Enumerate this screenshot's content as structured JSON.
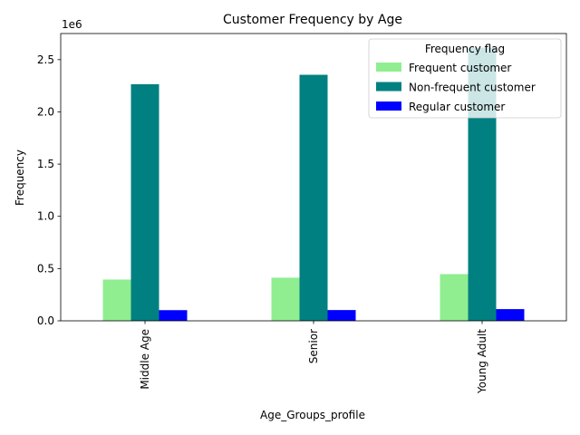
{
  "chart_data": {
    "type": "bar",
    "title": "Customer Frequency by Age",
    "xlabel": "Age_Groups_profile",
    "ylabel": "Frequency",
    "y_offset_label": "1e6",
    "categories": [
      "Middle Age",
      "Senior",
      "Young Adult"
    ],
    "series": [
      {
        "name": "Frequent customer",
        "color": "#90ee90",
        "values": [
          395000,
          413000,
          447000
        ]
      },
      {
        "name": "Non-frequent customer",
        "color": "#008080",
        "values": [
          2265000,
          2355000,
          2615000
        ]
      },
      {
        "name": "Regular customer",
        "color": "#0000ff",
        "values": [
          102000,
          103000,
          112000
        ]
      }
    ],
    "ylim": [
      0,
      2750000
    ],
    "y_ticks": [
      0,
      500000,
      1000000,
      1500000,
      2000000,
      2500000
    ],
    "y_tick_labels": [
      "0.0",
      "0.5",
      "1.0",
      "1.5",
      "2.0",
      "2.5"
    ],
    "legend": {
      "title": "Frequency flag",
      "placement": "top-right"
    },
    "grid": false
  }
}
